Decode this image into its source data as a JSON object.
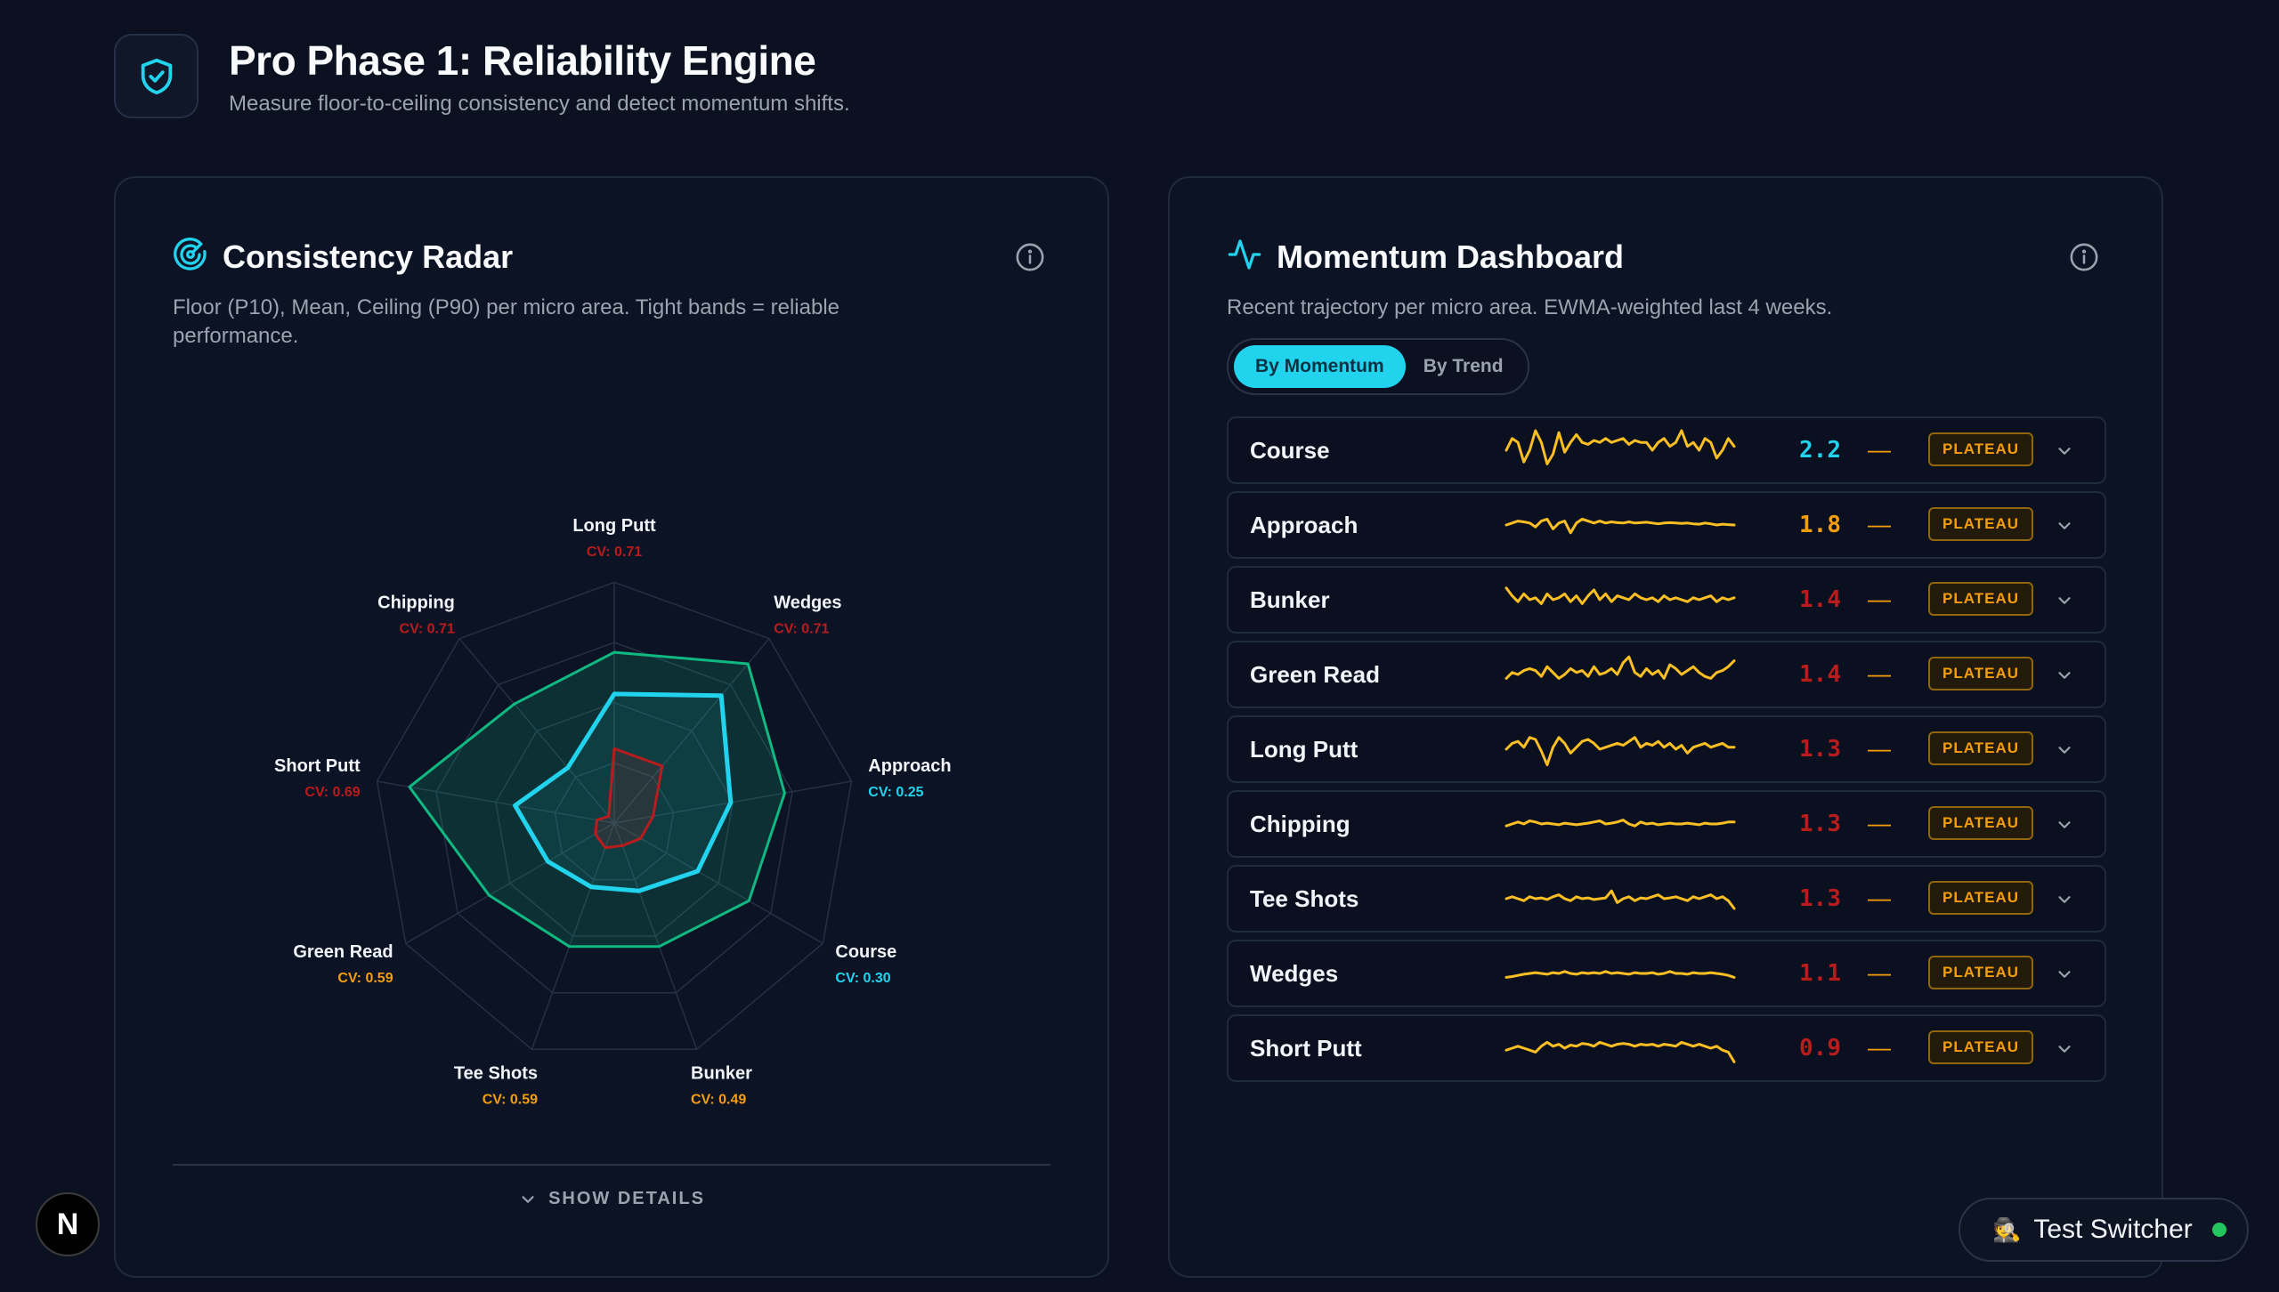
{
  "header": {
    "title": "Pro Phase 1: Reliability Engine",
    "subtitle": "Measure floor-to-ceiling consistency and detect momentum shifts.",
    "icon": "shield-check-icon"
  },
  "radar_card": {
    "title": "Consistency Radar",
    "description": "Floor (P10), Mean, Ceiling (P90) per micro area. Tight bands = reliable performance.",
    "show_details_label": "SHOW DETAILS"
  },
  "chart_data": {
    "type": "radar",
    "categories": [
      "Long Putt",
      "Wedges",
      "Approach",
      "Course",
      "Bunker",
      "Tee Shots",
      "Green Read",
      "Short Putt",
      "Chipping"
    ],
    "cv_labels": [
      "CV: 0.71",
      "CV: 0.71",
      "CV: 0.25",
      "CV: 0.30",
      "CV: 0.49",
      "CV: 0.59",
      "CV: 0.59",
      "CV: 0.69",
      "CV: 0.71"
    ],
    "cv_values": [
      0.71,
      0.71,
      0.25,
      0.3,
      0.49,
      0.59,
      0.59,
      0.69,
      0.71
    ],
    "series": [
      {
        "key": "ceiling",
        "values": [
          0.78,
          0.95,
          0.79,
          0.71,
          0.6,
          0.6,
          0.66,
          0.95,
          0.71
        ]
      },
      {
        "key": "mean",
        "values": [
          0.59,
          0.76,
          0.54,
          0.44,
          0.33,
          0.31,
          0.35,
          0.46,
          0.33
        ]
      },
      {
        "key": "floor",
        "values": [
          0.34,
          0.34,
          0.18,
          0.14,
          0.11,
          0.12,
          0.1,
          0.08,
          0.04
        ]
      }
    ],
    "rlim": [
      0,
      1
    ],
    "grid_rings": 4,
    "colors": {
      "ceiling": "#10b981",
      "mean": "#22d3ee",
      "floor": "#b91c1c",
      "cv_low": "#22d3ee",
      "cv_mid": "#f59e0b",
      "cv_high": "#b91c1c"
    }
  },
  "momentum_card": {
    "title": "Momentum Dashboard",
    "description": "Recent trajectory per micro area. EWMA-weighted last 4 weeks.",
    "toggle": {
      "active": "By Momentum",
      "inactive": "By Trend"
    },
    "rows": [
      {
        "name": "Course",
        "value": "2.2",
        "color": "#22d3ee",
        "dash": "—",
        "status": "PLATEAU",
        "spark": [
          0.5,
          0.2,
          0.3,
          0.8,
          0.5,
          0.0,
          0.3,
          0.85,
          0.6,
          0.05,
          0.55,
          0.3,
          0.1,
          0.3,
          0.35,
          0.25,
          0.3,
          0.2,
          0.3,
          0.25,
          0.2,
          0.35,
          0.25,
          0.3,
          0.3,
          0.5,
          0.3,
          0.2,
          0.4,
          0.3,
          0.0,
          0.4,
          0.3,
          0.5,
          0.2,
          0.3,
          0.7,
          0.5,
          0.2,
          0.4
        ]
      },
      {
        "name": "Approach",
        "value": "1.8",
        "color": "#f59e0b",
        "dash": "—",
        "status": "PLATEAU",
        "spark": [
          0.5,
          0.45,
          0.4,
          0.42,
          0.45,
          0.55,
          0.4,
          0.35,
          0.6,
          0.45,
          0.4,
          0.7,
          0.45,
          0.35,
          0.4,
          0.45,
          0.4,
          0.45,
          0.42,
          0.44,
          0.45,
          0.42,
          0.45,
          0.44,
          0.43,
          0.45,
          0.47,
          0.45,
          0.44,
          0.45,
          0.46,
          0.45,
          0.47,
          0.48,
          0.45,
          0.47,
          0.5,
          0.48,
          0.49,
          0.5
        ]
      },
      {
        "name": "Bunker",
        "value": "1.4",
        "color": "#b91c1c",
        "dash": "—",
        "status": "PLATEAU",
        "spark": [
          0.2,
          0.4,
          0.55,
          0.35,
          0.5,
          0.45,
          0.6,
          0.35,
          0.5,
          0.45,
          0.35,
          0.55,
          0.4,
          0.6,
          0.4,
          0.25,
          0.5,
          0.35,
          0.55,
          0.4,
          0.45,
          0.5,
          0.35,
          0.45,
          0.5,
          0.45,
          0.55,
          0.4,
          0.5,
          0.45,
          0.5,
          0.55,
          0.45,
          0.5,
          0.45,
          0.4,
          0.55,
          0.45,
          0.5,
          0.45
        ]
      },
      {
        "name": "Green Read",
        "value": "1.4",
        "color": "#b91c1c",
        "dash": "—",
        "status": "PLATEAU",
        "spark": [
          0.6,
          0.45,
          0.5,
          0.4,
          0.35,
          0.4,
          0.55,
          0.3,
          0.45,
          0.6,
          0.5,
          0.35,
          0.45,
          0.4,
          0.55,
          0.3,
          0.5,
          0.45,
          0.35,
          0.5,
          0.2,
          0.05,
          0.45,
          0.55,
          0.35,
          0.5,
          0.4,
          0.6,
          0.25,
          0.35,
          0.5,
          0.4,
          0.3,
          0.45,
          0.55,
          0.6,
          0.45,
          0.4,
          0.3,
          0.15
        ]
      },
      {
        "name": "Long Putt",
        "value": "1.3",
        "color": "#b91c1c",
        "dash": "—",
        "status": "PLATEAU",
        "spark": [
          0.5,
          0.35,
          0.3,
          0.45,
          0.2,
          0.25,
          0.55,
          0.9,
          0.45,
          0.2,
          0.35,
          0.6,
          0.45,
          0.3,
          0.25,
          0.35,
          0.5,
          0.45,
          0.4,
          0.35,
          0.4,
          0.3,
          0.2,
          0.45,
          0.35,
          0.4,
          0.3,
          0.45,
          0.35,
          0.5,
          0.4,
          0.6,
          0.45,
          0.4,
          0.35,
          0.45,
          0.4,
          0.35,
          0.45,
          0.45
        ]
      },
      {
        "name": "Chipping",
        "value": "1.3",
        "color": "#b91c1c",
        "dash": "—",
        "status": "PLATEAU",
        "spark": [
          0.55,
          0.5,
          0.45,
          0.5,
          0.42,
          0.45,
          0.5,
          0.48,
          0.5,
          0.52,
          0.48,
          0.5,
          0.52,
          0.5,
          0.48,
          0.45,
          0.42,
          0.5,
          0.48,
          0.45,
          0.4,
          0.5,
          0.55,
          0.45,
          0.5,
          0.48,
          0.52,
          0.5,
          0.48,
          0.5,
          0.5,
          0.48,
          0.5,
          0.52,
          0.48,
          0.5,
          0.5,
          0.48,
          0.45,
          0.45
        ]
      },
      {
        "name": "Tee Shots",
        "value": "1.3",
        "color": "#b91c1c",
        "dash": "—",
        "status": "PLATEAU",
        "spark": [
          0.5,
          0.45,
          0.5,
          0.55,
          0.45,
          0.5,
          0.48,
          0.52,
          0.45,
          0.4,
          0.5,
          0.55,
          0.45,
          0.5,
          0.48,
          0.52,
          0.5,
          0.48,
          0.3,
          0.6,
          0.5,
          0.45,
          0.55,
          0.48,
          0.5,
          0.45,
          0.4,
          0.5,
          0.48,
          0.45,
          0.5,
          0.55,
          0.45,
          0.5,
          0.45,
          0.4,
          0.5,
          0.45,
          0.55,
          0.75
        ]
      },
      {
        "name": "Wedges",
        "value": "1.1",
        "color": "#b91c1c",
        "dash": "—",
        "status": "PLATEAU",
        "spark": [
          0.6,
          0.58,
          0.55,
          0.52,
          0.5,
          0.48,
          0.5,
          0.52,
          0.48,
          0.5,
          0.45,
          0.5,
          0.52,
          0.48,
          0.5,
          0.48,
          0.5,
          0.45,
          0.5,
          0.48,
          0.5,
          0.52,
          0.48,
          0.5,
          0.5,
          0.48,
          0.52,
          0.5,
          0.45,
          0.5,
          0.5,
          0.52,
          0.48,
          0.5,
          0.5,
          0.48,
          0.5,
          0.52,
          0.55,
          0.6
        ]
      },
      {
        "name": "Short Putt",
        "value": "0.9",
        "color": "#b91c1c",
        "dash": "—",
        "status": "PLATEAU",
        "spark": [
          0.55,
          0.5,
          0.45,
          0.5,
          0.55,
          0.6,
          0.45,
          0.35,
          0.45,
          0.4,
          0.5,
          0.42,
          0.45,
          0.38,
          0.4,
          0.45,
          0.35,
          0.4,
          0.45,
          0.4,
          0.38,
          0.4,
          0.45,
          0.4,
          0.42,
          0.4,
          0.45,
          0.4,
          0.42,
          0.45,
          0.35,
          0.4,
          0.45,
          0.4,
          0.45,
          0.5,
          0.45,
          0.55,
          0.6,
          0.85
        ]
      }
    ]
  },
  "floating": {
    "next_logo": "N",
    "test_switcher": "Test Switcher",
    "test_switcher_emoji": "🕵️",
    "status_color": "#22c55e"
  }
}
